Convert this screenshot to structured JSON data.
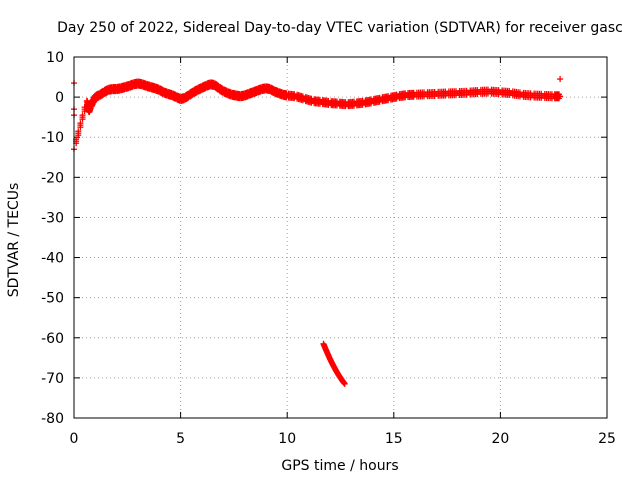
{
  "chart_data": {
    "type": "scatter",
    "title": "Day 250 of 2022, Sidereal Day-to-day VTEC variation (SDTVAR) for receiver gasc",
    "xlabel": "GPS time / hours",
    "ylabel": "SDTVAR / TECUs",
    "xlim": [
      0,
      25
    ],
    "ylim": [
      -80,
      10
    ],
    "xticks": [
      0,
      5,
      10,
      15,
      20,
      25
    ],
    "yticks": [
      10,
      0,
      -10,
      -20,
      -30,
      -40,
      -50,
      -60,
      -70,
      -80
    ],
    "grid": true,
    "marker": "+",
    "color": "#ff0000",
    "series": [
      {
        "name": "main trace",
        "points": [
          [
            0.0,
            3.5
          ],
          [
            0.0,
            -3.0
          ],
          [
            0.0,
            -4.5
          ],
          [
            0.0,
            -13.0
          ],
          [
            0.6,
            -1.0
          ],
          [
            0.7,
            -3.5
          ],
          [
            0.8,
            -2.0
          ],
          [
            0.9,
            -1.0
          ],
          [
            1.0,
            0.0
          ],
          [
            1.2,
            0.5
          ],
          [
            1.4,
            1.2
          ],
          [
            1.6,
            1.8
          ],
          [
            1.8,
            2.0
          ],
          [
            2.0,
            2.0
          ],
          [
            2.2,
            2.2
          ],
          [
            2.4,
            2.5
          ],
          [
            2.6,
            2.8
          ],
          [
            2.8,
            3.2
          ],
          [
            3.0,
            3.4
          ],
          [
            3.2,
            3.2
          ],
          [
            3.4,
            2.8
          ],
          [
            3.6,
            2.5
          ],
          [
            3.8,
            2.2
          ],
          [
            4.0,
            1.8
          ],
          [
            4.2,
            1.2
          ],
          [
            4.4,
            0.8
          ],
          [
            4.6,
            0.5
          ],
          [
            4.8,
            0.0
          ],
          [
            5.0,
            -0.5
          ],
          [
            5.2,
            -0.2
          ],
          [
            5.4,
            0.5
          ],
          [
            5.6,
            1.2
          ],
          [
            5.8,
            1.8
          ],
          [
            6.0,
            2.3
          ],
          [
            6.2,
            2.8
          ],
          [
            6.4,
            3.2
          ],
          [
            6.6,
            3.0
          ],
          [
            6.8,
            2.2
          ],
          [
            7.0,
            1.5
          ],
          [
            7.2,
            1.0
          ],
          [
            7.4,
            0.6
          ],
          [
            7.6,
            0.4
          ],
          [
            7.8,
            0.2
          ],
          [
            8.0,
            0.4
          ],
          [
            8.2,
            0.8
          ],
          [
            8.4,
            1.2
          ],
          [
            8.6,
            1.6
          ],
          [
            8.8,
            2.0
          ],
          [
            9.0,
            2.2
          ],
          [
            9.2,
            2.0
          ],
          [
            9.4,
            1.4
          ],
          [
            9.6,
            1.0
          ],
          [
            9.8,
            0.6
          ],
          [
            10.0,
            0.4
          ],
          [
            10.4,
            0.2
          ],
          [
            10.8,
            -0.4
          ],
          [
            11.2,
            -1.0
          ],
          [
            11.6,
            -1.2
          ],
          [
            12.0,
            -1.5
          ],
          [
            12.4,
            -1.6
          ],
          [
            12.8,
            -1.8
          ],
          [
            13.2,
            -1.6
          ],
          [
            13.6,
            -1.4
          ],
          [
            14.0,
            -1.0
          ],
          [
            14.4,
            -0.6
          ],
          [
            14.8,
            -0.2
          ],
          [
            15.2,
            0.2
          ],
          [
            15.6,
            0.5
          ],
          [
            16.0,
            0.6
          ],
          [
            16.5,
            0.7
          ],
          [
            17.0,
            0.8
          ],
          [
            17.5,
            0.9
          ],
          [
            18.0,
            1.0
          ],
          [
            18.5,
            1.1
          ],
          [
            19.0,
            1.3
          ],
          [
            19.5,
            1.4
          ],
          [
            20.0,
            1.2
          ],
          [
            20.5,
            1.0
          ],
          [
            21.0,
            0.6
          ],
          [
            21.5,
            0.4
          ],
          [
            22.0,
            0.3
          ],
          [
            22.5,
            0.2
          ],
          [
            22.8,
            0.2
          ],
          [
            22.8,
            4.5
          ]
        ]
      },
      {
        "name": "outlier arc",
        "points": [
          [
            11.7,
            -61.5
          ],
          [
            11.8,
            -62.8
          ],
          [
            11.9,
            -64.0
          ],
          [
            12.0,
            -65.2
          ],
          [
            12.1,
            -66.3
          ],
          [
            12.2,
            -67.3
          ],
          [
            12.3,
            -68.3
          ],
          [
            12.4,
            -69.2
          ],
          [
            12.5,
            -70.0
          ],
          [
            12.6,
            -70.8
          ],
          [
            12.7,
            -71.5
          ]
        ]
      }
    ]
  }
}
